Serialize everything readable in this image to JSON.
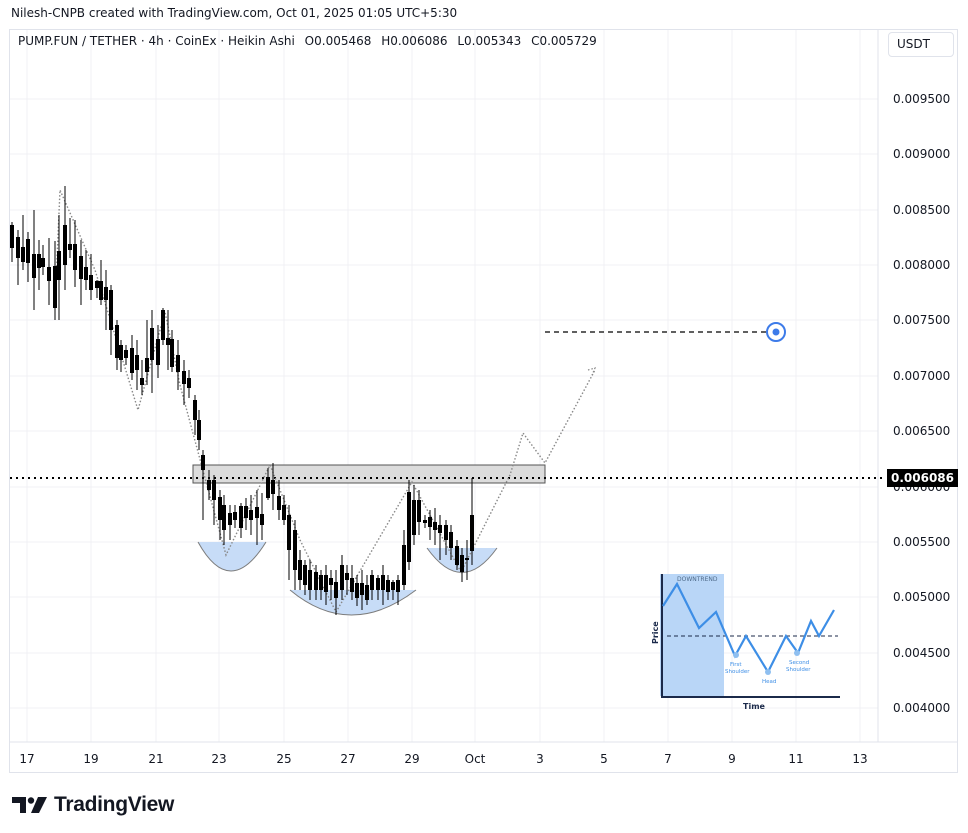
{
  "credit": "Nilesh-CNPB created with TradingView.com, Oct 01, 2025 01:05 UTC+5:30",
  "legend": {
    "symbol": "PUMP.FUN / TETHER · 4h · CoinEx · Heikin Ashi",
    "open": "O0.005468",
    "high": "H0.006086",
    "low": "L0.005343",
    "close": "C0.005729"
  },
  "price_axis": {
    "unit": "USDT",
    "current_price": "0.006086",
    "ticks": [
      "0.009500",
      "0.009000",
      "0.008500",
      "0.008000",
      "0.007500",
      "0.007000",
      "0.006500",
      "0.006000",
      "0.005500",
      "0.005000",
      "0.004500",
      "0.004000"
    ]
  },
  "time_axis": {
    "ticks": [
      "17",
      "19",
      "21",
      "23",
      "25",
      "27",
      "29",
      "Oct",
      "3",
      "5",
      "7",
      "9",
      "11",
      "13"
    ]
  },
  "inset": {
    "label_downtrend": "DOWNTREND",
    "label_price": "Price",
    "label_time": "Time",
    "label_first_shoulder_1": "First",
    "label_first_shoulder_2": "Shoulder",
    "label_head": "Head",
    "label_second_shoulder_1": "Second",
    "label_second_shoulder_2": "Shoulder"
  },
  "logo": {
    "text": "TradingView"
  },
  "colors": {
    "candle": "#000000",
    "resistance_zone": "#dcdcdc",
    "pattern_fill": "#c7dcf7",
    "target_marker": "#3d7be9",
    "inset_fill": "#b9d6f7",
    "inset_line": "#3d8ee6"
  },
  "chart_data": {
    "type": "candlestick",
    "title": "PUMP.FUN / TETHER · 4h · CoinEx · Heikin Ashi",
    "xlabel": "",
    "ylabel": "USDT",
    "ylim": [
      0.0038,
      0.0098
    ],
    "x_ticks": [
      "17",
      "19",
      "21",
      "23",
      "25",
      "27",
      "29",
      "Oct",
      "3",
      "5",
      "7",
      "9",
      "11",
      "13"
    ],
    "last_price": 0.006086,
    "ohlc_last": {
      "open": 0.005468,
      "high": 0.006086,
      "low": 0.005343,
      "close": 0.005729
    },
    "annotations": {
      "resistance_zone": [
        0.00602,
        0.00617
      ],
      "target_level": 0.0074,
      "pattern": "Inverse head and shoulders",
      "left_shoulder_low": 0.00538,
      "head_low": 0.00483,
      "right_shoulder_low": 0.00523,
      "projected_path": [
        0.00617,
        0.0065,
        0.0062,
        0.0071
      ]
    },
    "approx_candles_close": [
      0.0083,
      0.0081,
      0.008,
      0.0079,
      0.0083,
      0.0085,
      0.008,
      0.0078,
      0.0076,
      0.0073,
      0.0072,
      0.0074,
      0.0071,
      0.0069,
      0.0074,
      0.0072,
      0.007,
      0.0068,
      0.0066,
      0.0063,
      0.006,
      0.0059,
      0.0057,
      0.0056,
      0.0055,
      0.0057,
      0.0056,
      0.0058,
      0.0059,
      0.006,
      0.0059,
      0.0057,
      0.0054,
      0.0052,
      0.0051,
      0.0051,
      0.005,
      0.0051,
      0.0052,
      0.0051,
      0.0051,
      0.005,
      0.0052,
      0.0056,
      0.0059,
      0.0057,
      0.0056,
      0.0055,
      0.0054,
      0.0055,
      0.0057
    ]
  }
}
